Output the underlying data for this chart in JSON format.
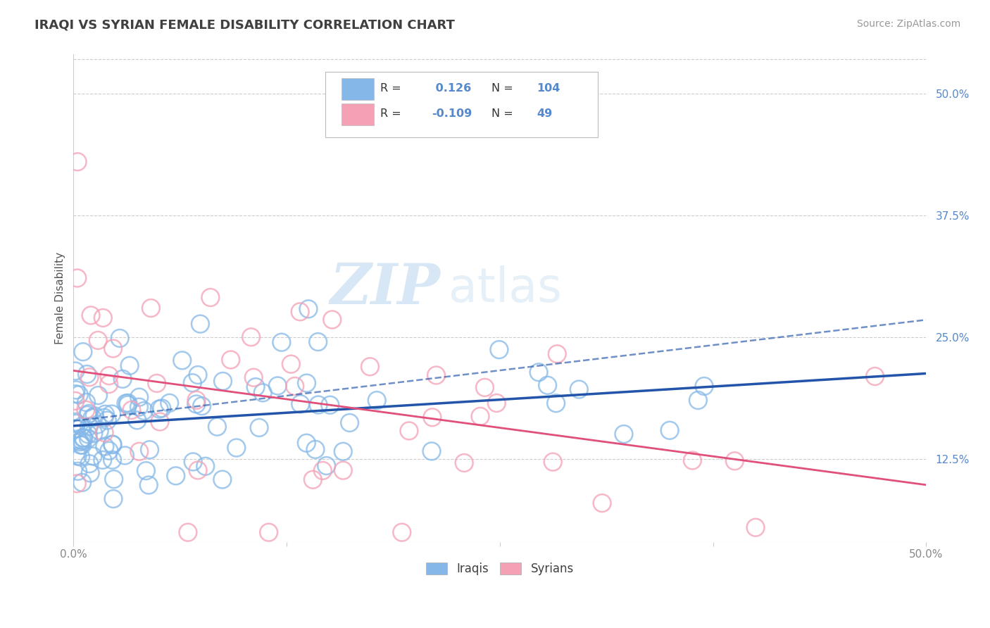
{
  "title": "IRAQI VS SYRIAN FEMALE DISABILITY CORRELATION CHART",
  "source_text": "Source: ZipAtlas.com",
  "ylabel": "Female Disability",
  "xlim": [
    0.0,
    0.5
  ],
  "ylim": [
    0.04,
    0.54
  ],
  "xtick_vals": [
    0.0,
    0.125,
    0.25,
    0.375,
    0.5
  ],
  "xtick_labels": [
    "0.0%",
    "",
    "",
    "",
    "50.0%"
  ],
  "ytick_vals": [
    0.125,
    0.25,
    0.375,
    0.5
  ],
  "ytick_labels": [
    "12.5%",
    "25.0%",
    "37.5%",
    "50.0%"
  ],
  "iraqi_color": "#85b8e8",
  "syrian_color": "#f4a0b5",
  "iraqi_line_color": "#2255aa",
  "syrian_line_color": "#e0507a",
  "iraqi_R": 0.126,
  "iraqi_N": 104,
  "syrian_R": -0.109,
  "syrian_N": 49,
  "watermark": "ZIPatlas",
  "background_color": "#ffffff",
  "grid_color": "#cccccc",
  "title_color": "#404040",
  "title_fontsize": 13,
  "axis_tick_color": "#5588cc",
  "iraqi_seed": 42,
  "syrian_seed": 7
}
